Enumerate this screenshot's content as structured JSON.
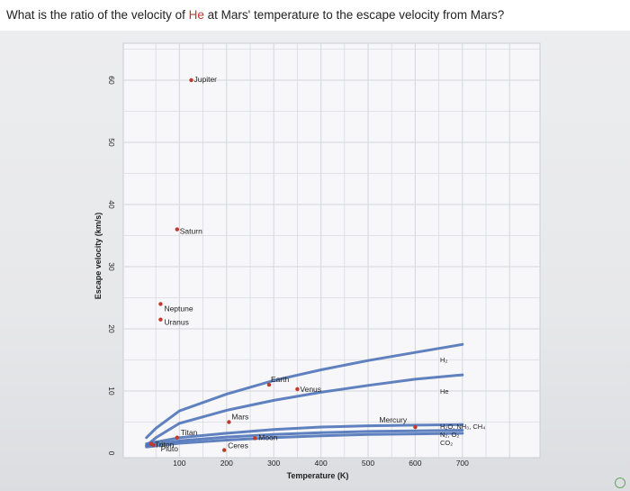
{
  "question": {
    "before": "What is the ratio of the velocity of ",
    "highlight": "He",
    "after": " at Mars' temperature to the escape velocity from Mars?"
  },
  "chart_data": {
    "type": "scatter",
    "xlabel": "Temperature (K)",
    "ylabel": "Escape velocity (km/s)",
    "xlim": [
      0,
      800
    ],
    "ylim": [
      0,
      65
    ],
    "xticks": [
      "100",
      "200",
      "300",
      "400",
      "500",
      "600",
      "700"
    ],
    "yticks": [
      "0",
      "10",
      "20",
      "30",
      "40",
      "50",
      "60"
    ],
    "grid": true,
    "colors": {
      "points": "#c0392b",
      "curves": "#4f73b8",
      "grid": "#d9dbe0",
      "plot_bg": "#f7f7f9"
    },
    "points": [
      {
        "name": "Jupiter",
        "x": 125,
        "y": 60
      },
      {
        "name": "Saturn",
        "x": 95,
        "y": 36
      },
      {
        "name": "Neptune",
        "x": 60,
        "y": 24
      },
      {
        "name": "Uranus",
        "x": 60,
        "y": 21.5
      },
      {
        "name": "Earth",
        "x": 290,
        "y": 11
      },
      {
        "name": "Venus",
        "x": 350,
        "y": 10.3
      },
      {
        "name": "Mars",
        "x": 205,
        "y": 5
      },
      {
        "name": "Mercury",
        "x": 600,
        "y": 4.2
      },
      {
        "name": "Titan",
        "x": 95,
        "y": 2.5
      },
      {
        "name": "Triton",
        "x": 40,
        "y": 1.5
      },
      {
        "name": "Pluto",
        "x": 45,
        "y": 1.3
      },
      {
        "name": "Ceres",
        "x": 195,
        "y": 0.5
      },
      {
        "name": "Moon",
        "x": 260,
        "y": 2.4
      }
    ],
    "series": [
      {
        "name": "H2",
        "label": "H₂",
        "x": [
          30,
          50,
          100,
          200,
          300,
          400,
          500,
          600,
          700
        ],
        "y": [
          2.5,
          4.0,
          6.8,
          9.5,
          11.7,
          13.4,
          14.9,
          16.2,
          17.5
        ]
      },
      {
        "name": "He",
        "label": "He",
        "x": [
          30,
          50,
          100,
          200,
          300,
          400,
          500,
          600,
          700
        ],
        "y": [
          1.2,
          2.5,
          4.8,
          6.9,
          8.5,
          9.8,
          10.9,
          11.9,
          12.6
        ]
      },
      {
        "name": "H2O, NH3, CH4",
        "label": "H₂O, NH₃, CH₄",
        "x": [
          30,
          100,
          200,
          300,
          400,
          500,
          600,
          700
        ],
        "y": [
          1.5,
          2.5,
          3.2,
          3.8,
          4.2,
          4.4,
          4.5,
          4.6
        ]
      },
      {
        "name": "N2, O2",
        "label": "N₂, O₂",
        "x": [
          30,
          100,
          200,
          300,
          400,
          500,
          600,
          700
        ],
        "y": [
          1.2,
          2.0,
          2.6,
          3.0,
          3.3,
          3.5,
          3.6,
          3.7
        ]
      },
      {
        "name": "CO2",
        "label": "CO₂",
        "x": [
          30,
          100,
          200,
          300,
          400,
          500,
          600,
          700
        ],
        "y": [
          1.0,
          1.6,
          2.1,
          2.5,
          2.8,
          3.0,
          3.1,
          3.2
        ]
      }
    ]
  }
}
